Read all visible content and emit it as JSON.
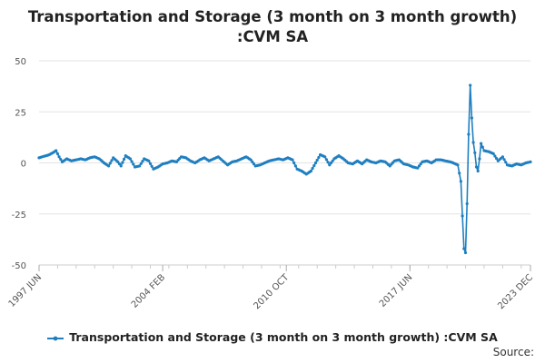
{
  "chart_data": {
    "type": "line",
    "title_lines": [
      "Transportation and Storage (3 month on 3 month growth)",
      ":CVM SA"
    ],
    "xlabel": "",
    "ylabel": "",
    "ylim": [
      -50,
      50
    ],
    "yticks": [
      50,
      25,
      0,
      -25,
      -50
    ],
    "xlim": [
      "1997-06",
      "2023-12"
    ],
    "xticks": [
      {
        "date": "1997-06",
        "label": "1997 JUN"
      },
      {
        "date": "2004-02",
        "label": "2004 FEB"
      },
      {
        "date": "2010-10",
        "label": "2010 OCT"
      },
      {
        "date": "2017-06",
        "label": "2017 JUN"
      },
      {
        "date": "2023-12",
        "label": "2023 DEC"
      }
    ],
    "grid": true,
    "legend_position": "bottom",
    "series": [
      {
        "name": "Transportation and Storage (3 month on 3 month growth) :CVM SA",
        "color": "#1f7fc0",
        "points": [
          [
            "1997-06",
            2.5
          ],
          [
            "1997-09",
            3.2
          ],
          [
            "1997-12",
            3.8
          ],
          [
            "1998-03",
            5.0
          ],
          [
            "1998-05",
            6.0
          ],
          [
            "1998-07",
            3.0
          ],
          [
            "1998-09",
            0.5
          ],
          [
            "1998-12",
            2.0
          ],
          [
            "1999-03",
            1.0
          ],
          [
            "1999-06",
            1.5
          ],
          [
            "1999-09",
            2.0
          ],
          [
            "1999-12",
            1.5
          ],
          [
            "2000-03",
            2.5
          ],
          [
            "2000-06",
            3.0
          ],
          [
            "2000-09",
            2.0
          ],
          [
            "2000-12",
            0.0
          ],
          [
            "2001-03",
            -1.5
          ],
          [
            "2001-06",
            2.5
          ],
          [
            "2001-09",
            0.5
          ],
          [
            "2001-11",
            -1.5
          ],
          [
            "2002-02",
            3.5
          ],
          [
            "2002-05",
            2.0
          ],
          [
            "2002-08",
            -2.0
          ],
          [
            "2002-11",
            -1.5
          ],
          [
            "2003-02",
            2.0
          ],
          [
            "2003-05",
            1.0
          ],
          [
            "2003-08",
            -3.0
          ],
          [
            "2003-11",
            -2.0
          ],
          [
            "2004-02",
            -0.5
          ],
          [
            "2004-05",
            0.0
          ],
          [
            "2004-08",
            1.0
          ],
          [
            "2004-11",
            0.5
          ],
          [
            "2005-02",
            3.0
          ],
          [
            "2005-05",
            2.5
          ],
          [
            "2005-08",
            1.0
          ],
          [
            "2005-11",
            0.0
          ],
          [
            "2006-02",
            1.5
          ],
          [
            "2006-05",
            2.5
          ],
          [
            "2006-08",
            1.0
          ],
          [
            "2006-11",
            2.0
          ],
          [
            "2007-02",
            3.0
          ],
          [
            "2007-05",
            1.0
          ],
          [
            "2007-08",
            -1.0
          ],
          [
            "2007-11",
            0.5
          ],
          [
            "2008-02",
            1.0
          ],
          [
            "2008-05",
            2.0
          ],
          [
            "2008-08",
            3.0
          ],
          [
            "2008-11",
            1.5
          ],
          [
            "2009-02",
            -1.5
          ],
          [
            "2009-05",
            -1.0
          ],
          [
            "2009-08",
            0.0
          ],
          [
            "2009-11",
            1.0
          ],
          [
            "2010-02",
            1.5
          ],
          [
            "2010-05",
            2.0
          ],
          [
            "2010-08",
            1.5
          ],
          [
            "2010-11",
            2.5
          ],
          [
            "2011-02",
            1.5
          ],
          [
            "2011-05",
            -3.0
          ],
          [
            "2011-08",
            -4.0
          ],
          [
            "2011-11",
            -5.5
          ],
          [
            "2012-02",
            -4.0
          ],
          [
            "2012-05",
            0.0
          ],
          [
            "2012-08",
            4.0
          ],
          [
            "2012-11",
            3.0
          ],
          [
            "2013-02",
            -1.0
          ],
          [
            "2013-05",
            2.0
          ],
          [
            "2013-08",
            3.5
          ],
          [
            "2013-11",
            2.0
          ],
          [
            "2014-02",
            0.0
          ],
          [
            "2014-05",
            -0.5
          ],
          [
            "2014-08",
            1.0
          ],
          [
            "2014-11",
            -0.5
          ],
          [
            "2015-02",
            1.5
          ],
          [
            "2015-05",
            0.5
          ],
          [
            "2015-08",
            0.0
          ],
          [
            "2015-11",
            1.0
          ],
          [
            "2016-02",
            0.5
          ],
          [
            "2016-05",
            -1.5
          ],
          [
            "2016-08",
            1.0
          ],
          [
            "2016-11",
            1.5
          ],
          [
            "2017-02",
            -0.5
          ],
          [
            "2017-05",
            -1.0
          ],
          [
            "2017-08",
            -2.0
          ],
          [
            "2017-11",
            -2.5
          ],
          [
            "2018-02",
            0.5
          ],
          [
            "2018-05",
            1.0
          ],
          [
            "2018-08",
            0.0
          ],
          [
            "2018-11",
            1.5
          ],
          [
            "2019-02",
            1.5
          ],
          [
            "2019-05",
            1.0
          ],
          [
            "2019-08",
            0.5
          ],
          [
            "2019-10",
            0.0
          ],
          [
            "2020-01",
            -1.0
          ],
          [
            "2020-03",
            -9.0
          ],
          [
            "2020-04",
            -26.0
          ],
          [
            "2020-05",
            -42.0
          ],
          [
            "2020-06",
            -44.0
          ],
          [
            "2020-07",
            -20.0
          ],
          [
            "2020-08",
            14.0
          ],
          [
            "2020-09",
            38.0
          ],
          [
            "2020-10",
            22.0
          ],
          [
            "2020-11",
            10.0
          ],
          [
            "2020-12",
            5.0
          ],
          [
            "2021-01",
            -2.0
          ],
          [
            "2021-02",
            -4.0
          ],
          [
            "2021-03",
            2.0
          ],
          [
            "2021-04",
            9.5
          ],
          [
            "2021-06",
            6.0
          ],
          [
            "2021-09",
            5.5
          ],
          [
            "2021-12",
            4.5
          ],
          [
            "2022-03",
            1.0
          ],
          [
            "2022-06",
            3.0
          ],
          [
            "2022-09",
            -1.0
          ],
          [
            "2022-12",
            -1.5
          ],
          [
            "2023-03",
            -0.5
          ],
          [
            "2023-06",
            -1.0
          ],
          [
            "2023-09",
            0.0
          ],
          [
            "2023-12",
            0.5
          ]
        ]
      }
    ],
    "source": "Source:"
  }
}
